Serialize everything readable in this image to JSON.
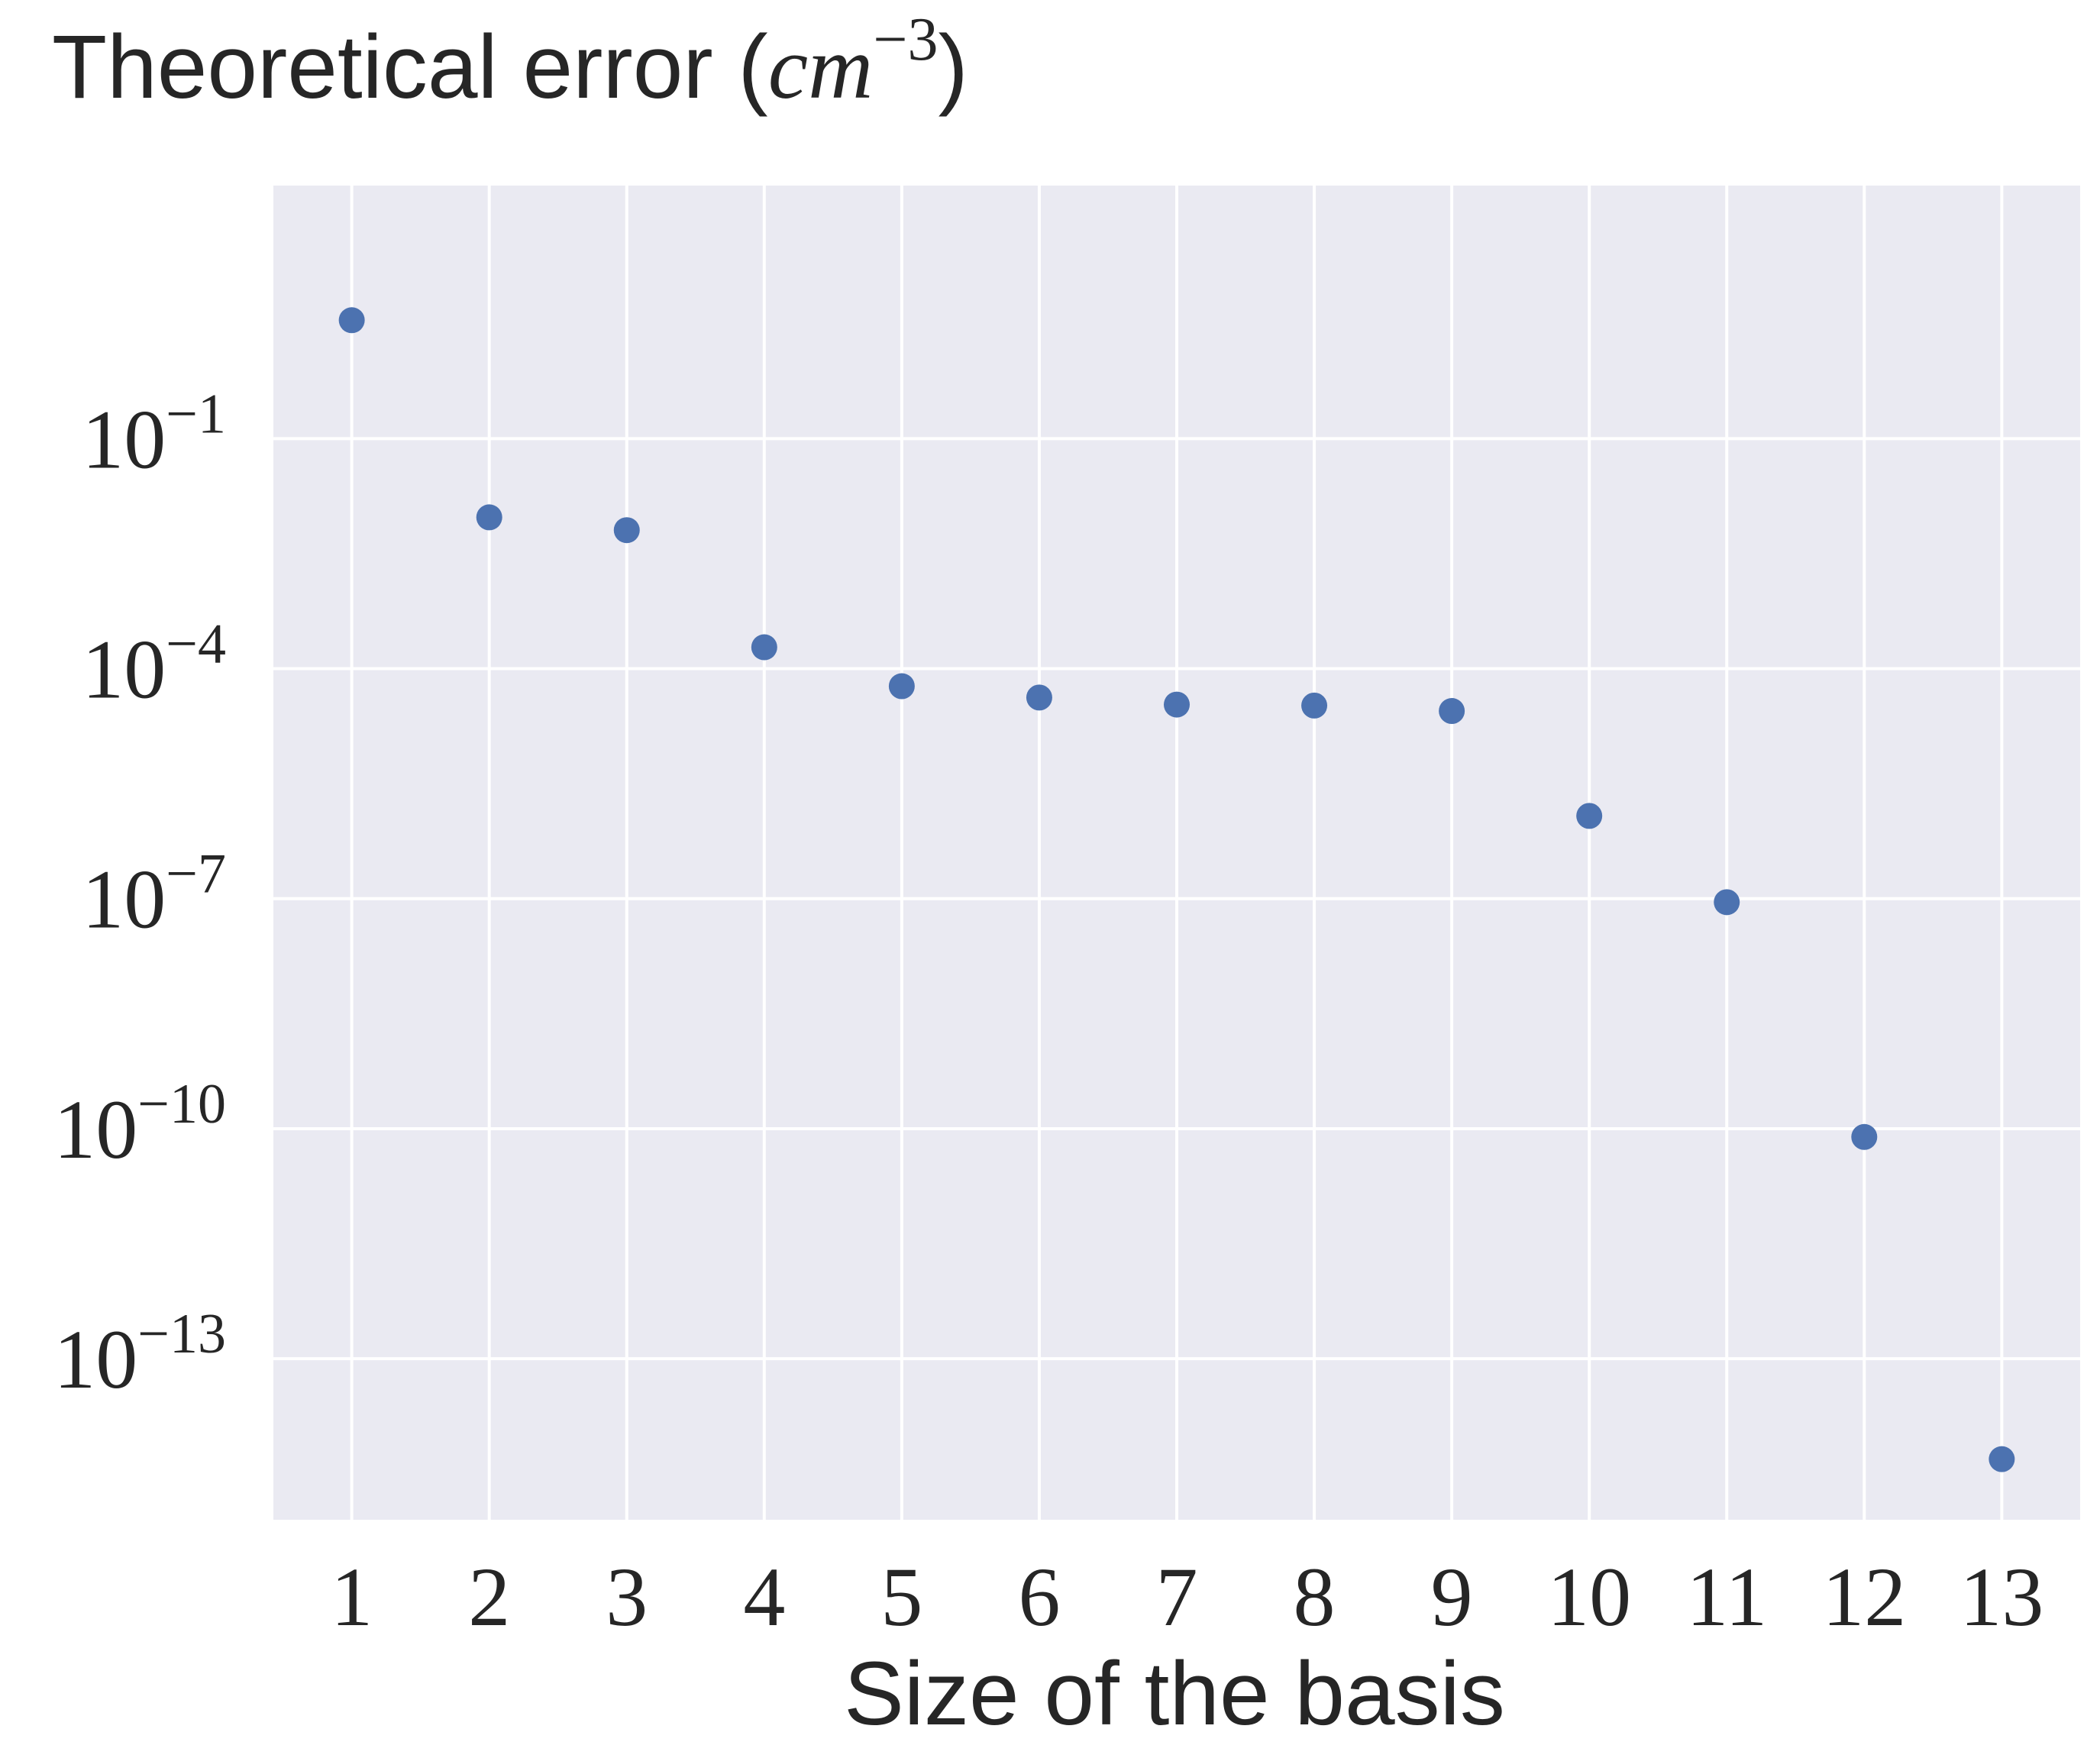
{
  "chart_data": {
    "type": "scatter",
    "title": {
      "text": "Theoretical error (",
      "math_base": "cm",
      "math_exp": "−3",
      "close": ")"
    },
    "xlabel": "Size of the basis",
    "ylabel": "",
    "yscale": "log",
    "ylim_exponent": [
      -15.1,
      2.3
    ],
    "xlim": [
      0.43,
      13.57
    ],
    "x_ticks": [
      "1",
      "2",
      "3",
      "4",
      "5",
      "6",
      "7",
      "8",
      "9",
      "10",
      "11",
      "12",
      "13"
    ],
    "y_ticks": [
      {
        "value": "1e-1",
        "base": "10",
        "exp": "−1"
      },
      {
        "value": "1e-4",
        "base": "10",
        "exp": "−4"
      },
      {
        "value": "1e-7",
        "base": "10",
        "exp": "−7"
      },
      {
        "value": "1e-10",
        "base": "10",
        "exp": "−10"
      },
      {
        "value": "1e-13",
        "base": "10",
        "exp": "−13"
      }
    ],
    "grid": true,
    "colors": {
      "background": "#eaeaf2",
      "grid": "#ffffff",
      "marker": "#4c72b0",
      "text": "#262626"
    },
    "series": [
      {
        "x": [
          1,
          2,
          3,
          4,
          5,
          6,
          7,
          8,
          9,
          10,
          11,
          12,
          13
        ],
        "y": [
          3.5,
          0.0094,
          0.0064,
          0.00019,
          5.9e-05,
          4.2e-05,
          3.4e-05,
          3.3e-05,
          2.8e-05,
          1.2e-06,
          9e-08,
          7.8e-11,
          4.9e-15
        ]
      }
    ]
  }
}
